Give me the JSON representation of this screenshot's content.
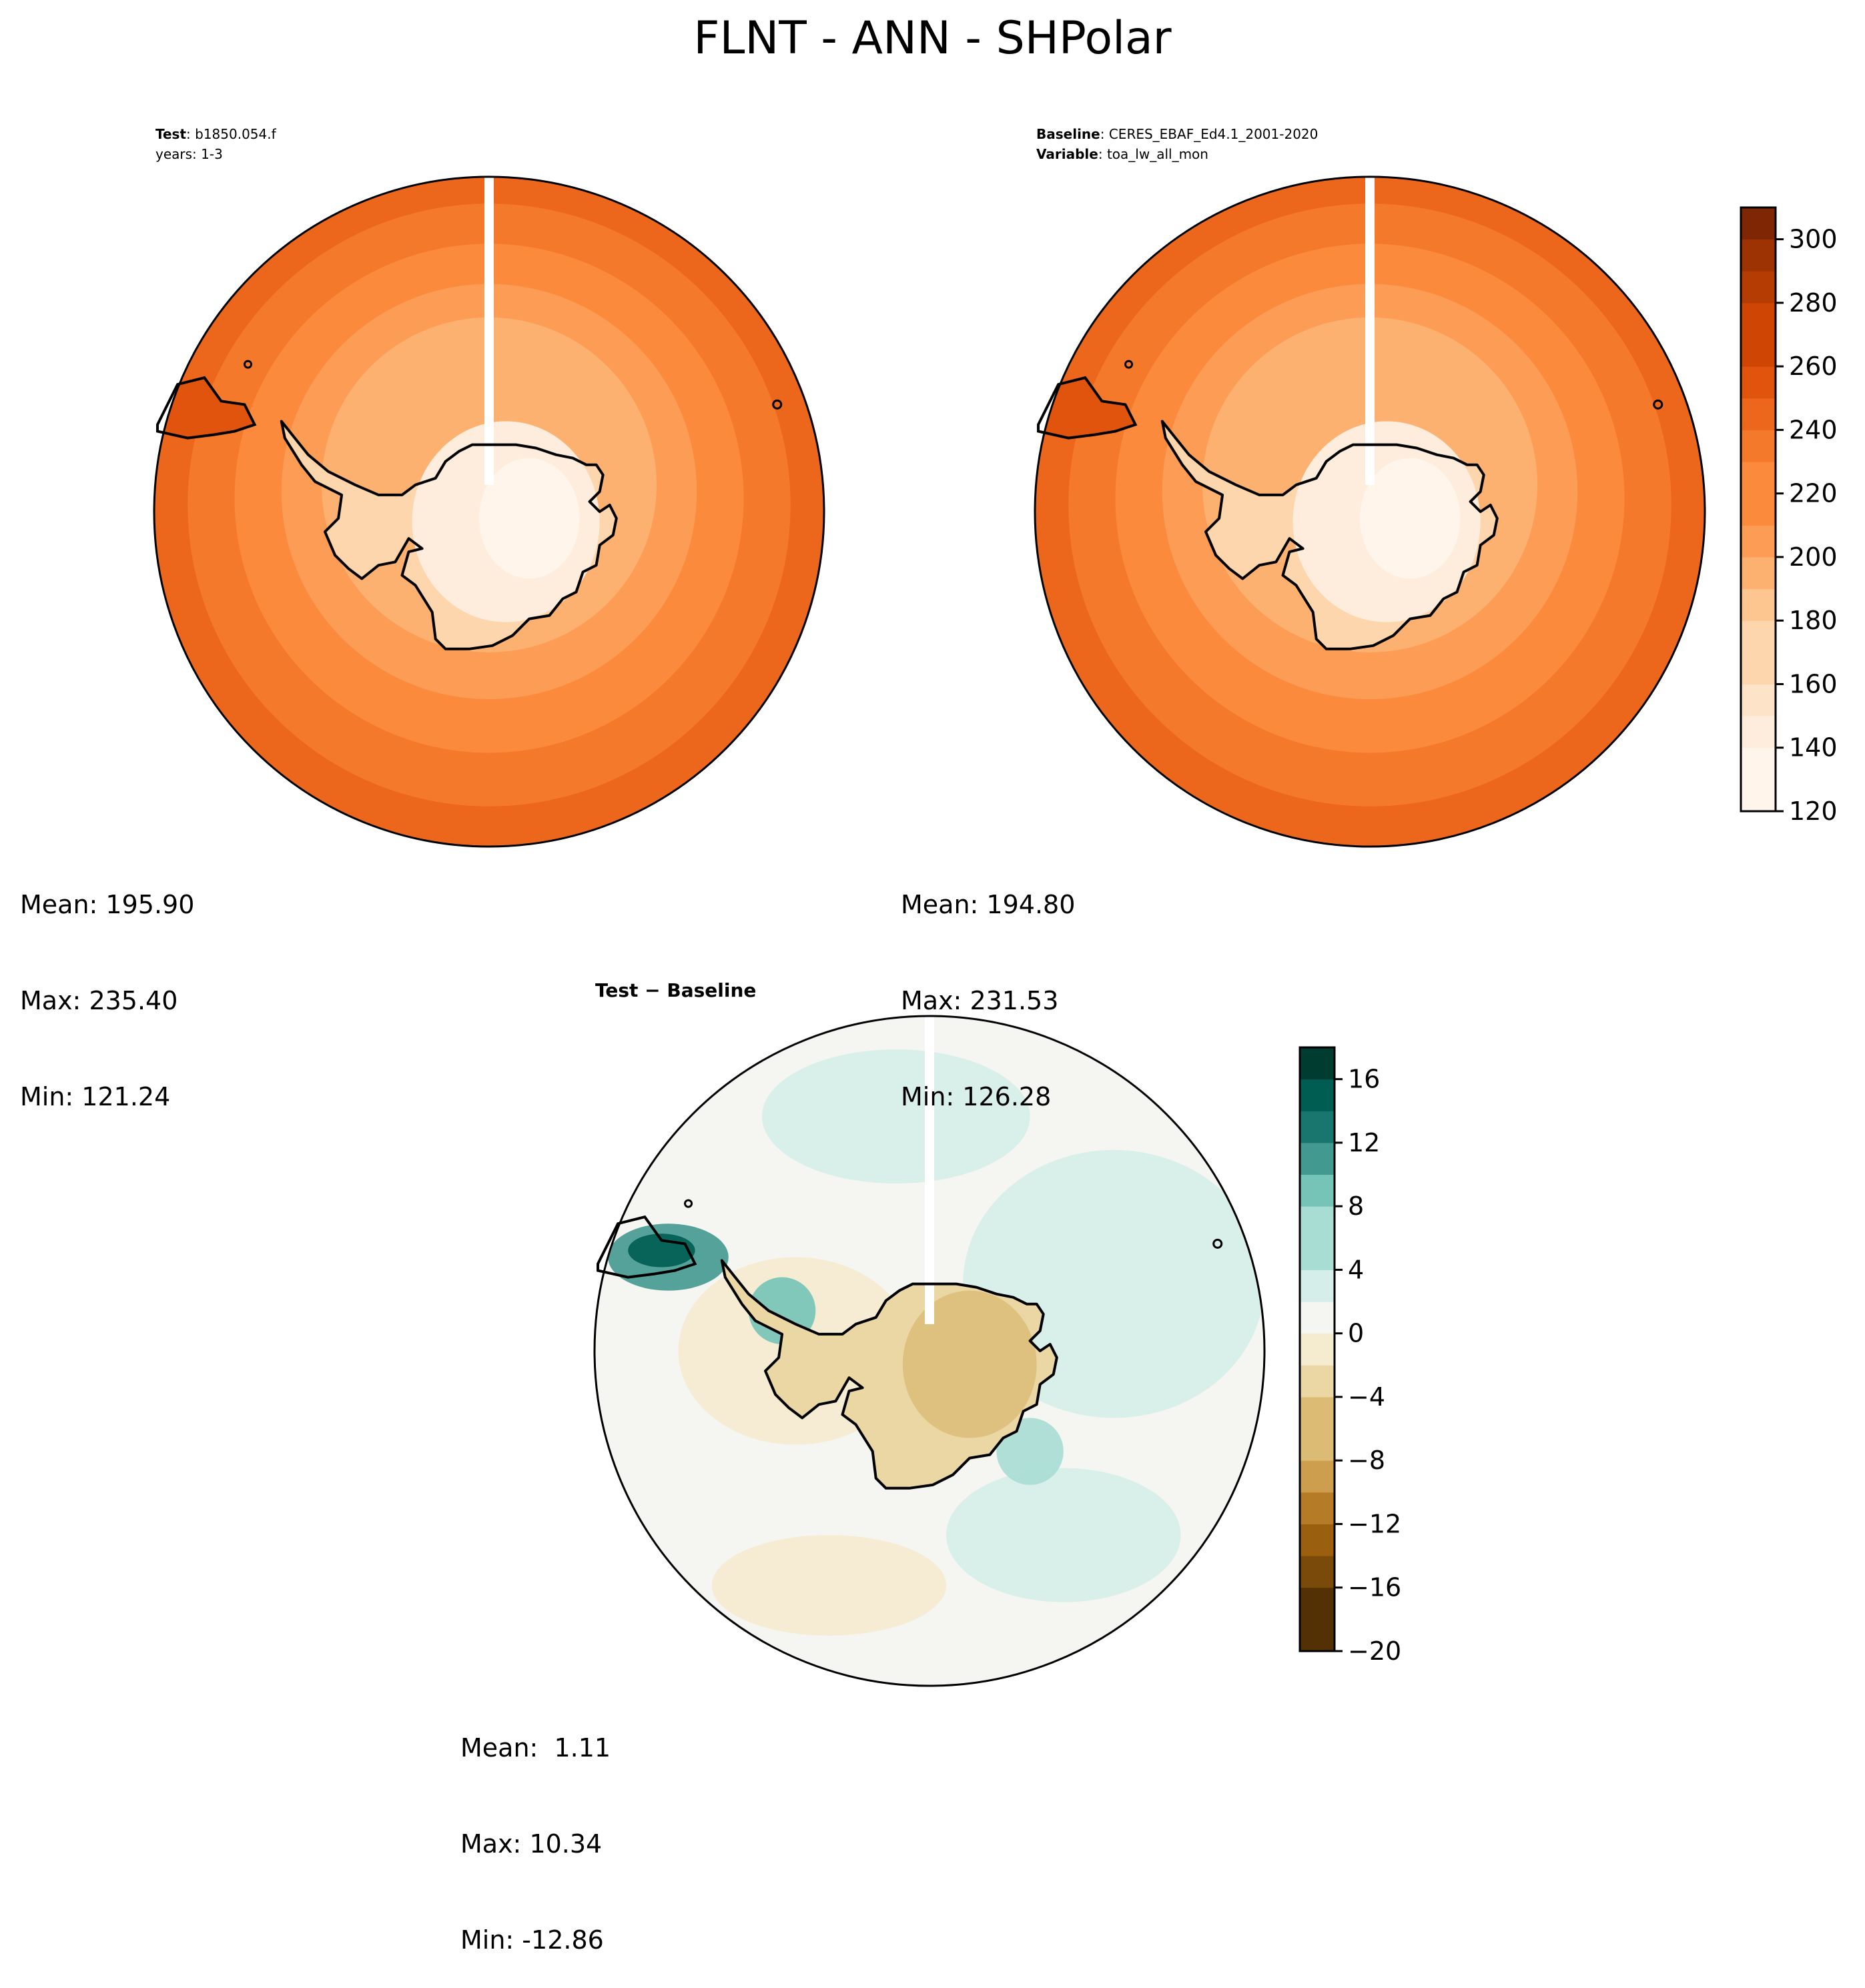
{
  "title": "FLNT - ANN - SHPolar",
  "test_panel": {
    "label_key": "Test",
    "label_value": "b1850.054.f",
    "years": "years: 1-3",
    "stats": {
      "mean": "Mean: 195.90",
      "max": "Max: 235.40",
      "min": "Min: 121.24"
    }
  },
  "baseline_panel": {
    "label_key": "Baseline",
    "label_value": "CERES_EBAF_Ed4.1_2001-2020",
    "variable_key": "Variable",
    "variable_value": "toa_lw_all_mon",
    "stats": {
      "mean": "Mean: 194.80",
      "max": "Max: 231.53",
      "min": "Min: 126.28"
    }
  },
  "diff_panel": {
    "title": "Test − Baseline",
    "stats": {
      "mean": "Mean:  1.11",
      "max": "Max: 10.34",
      "min": "Min: -12.86"
    }
  },
  "chart_data": [
    {
      "type": "heatmap",
      "name": "test",
      "projection": "south-polar-stereographic",
      "mean": 195.9,
      "max": 235.4,
      "min": 121.24,
      "colorbar": {
        "cmap": "Oranges",
        "range": [
          120,
          310
        ],
        "step": 10,
        "ticks": [
          120,
          140,
          160,
          180,
          200,
          220,
          240,
          260,
          280,
          300
        ]
      }
    },
    {
      "type": "heatmap",
      "name": "baseline",
      "projection": "south-polar-stereographic",
      "mean": 194.8,
      "max": 231.53,
      "min": 126.28,
      "colorbar": {
        "cmap": "Oranges",
        "range": [
          120,
          310
        ],
        "step": 10,
        "ticks": [
          120,
          140,
          160,
          180,
          200,
          220,
          240,
          260,
          280,
          300
        ]
      }
    },
    {
      "type": "heatmap",
      "name": "difference",
      "projection": "south-polar-stereographic",
      "mean": 1.11,
      "max": 10.34,
      "min": -12.86,
      "colorbar": {
        "cmap": "BrBG",
        "range": [
          -20,
          18
        ],
        "step": 2,
        "ticks": [
          -20,
          -16,
          -12,
          -8,
          -4,
          0,
          4,
          8,
          12,
          16
        ],
        "tick_labels": [
          "−20",
          "−16",
          "−12",
          "−8",
          "−4",
          "0",
          "4",
          "8",
          "12",
          "16"
        ]
      }
    }
  ],
  "colors": {
    "oranges": [
      "#fff5eb",
      "#feeddc",
      "#fde4c9",
      "#fdd6ad",
      "#fdc590",
      "#fdb171",
      "#fd9d55",
      "#fb8a3d",
      "#f5792b",
      "#ec661b",
      "#e1540d",
      "#cf4503",
      "#b53c02",
      "#9d3303",
      "#7f2704"
    ],
    "brbg": [
      "#543005",
      "#7a4a0a",
      "#9a600f",
      "#b67b27",
      "#cc9e4e",
      "#dcbc75",
      "#ebd7a3",
      "#f5ebcf",
      "#f5f5f2",
      "#d5eee9",
      "#a8ddd4",
      "#76c4b7",
      "#42998f",
      "#19766f",
      "#005d52",
      "#003c30"
    ]
  }
}
